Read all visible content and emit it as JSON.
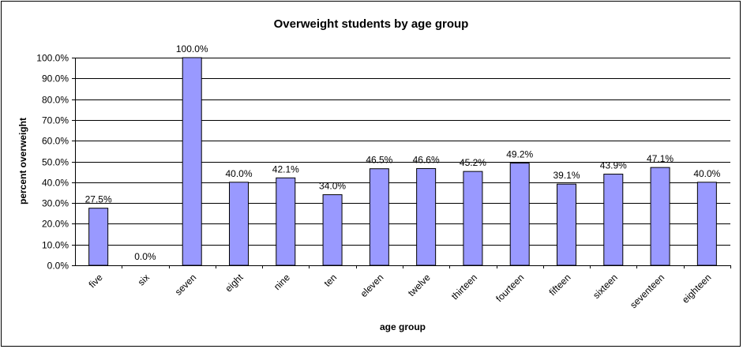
{
  "chart_data": {
    "type": "bar",
    "title": "Overweight students by age group",
    "xlabel": "age group",
    "ylabel": "percent overweight",
    "categories": [
      "five",
      "six",
      "seven",
      "eight",
      "nine",
      "ten",
      "eleven",
      "twelve",
      "thirteen",
      "fourteen",
      "fifteen",
      "sixteen",
      "seventeen",
      "eighteen"
    ],
    "values": [
      27.5,
      0.0,
      100.0,
      40.0,
      42.1,
      34.0,
      46.5,
      46.6,
      45.2,
      49.2,
      39.1,
      43.9,
      47.1,
      40.0
    ],
    "data_labels": [
      "27.5%",
      "0.0%",
      "100.0%",
      "40.0%",
      "42.1%",
      "34.0%",
      "46.5%",
      "46.6%",
      "45.2%",
      "49.2%",
      "39.1%",
      "43.9%",
      "47.1%",
      "40.0%"
    ],
    "ylim": [
      0,
      100
    ],
    "yticks": [
      0,
      10,
      20,
      30,
      40,
      50,
      60,
      70,
      80,
      90,
      100
    ],
    "ytick_labels": [
      "0.0%",
      "10.0%",
      "20.0%",
      "30.0%",
      "40.0%",
      "50.0%",
      "60.0%",
      "70.0%",
      "80.0%",
      "90.0%",
      "100.0%"
    ],
    "grid": true,
    "legend": "none",
    "bar_color": "#9999ff",
    "bar_edge_color": "#000000",
    "plot_background": "#ffffff"
  }
}
